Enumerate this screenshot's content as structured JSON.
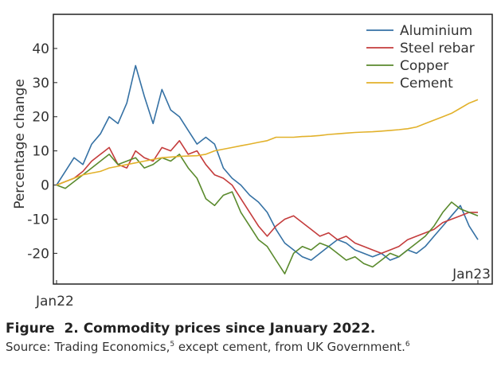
{
  "chart_data": {
    "type": "line",
    "title": "",
    "xlabel": "",
    "ylabel": "Percentage change",
    "ylim": [
      -29,
      50
    ],
    "yticks": [
      -20,
      -10,
      0,
      10,
      20,
      30,
      40
    ],
    "ytick_labels": [
      "-20",
      "-10",
      "0",
      "10",
      "20",
      "30",
      "40"
    ],
    "x_index_range": [
      0,
      48
    ],
    "x_ticks": [
      {
        "index": 0,
        "label": "Jan22"
      },
      {
        "index": 48,
        "label": "Jan23"
      }
    ],
    "legend": "top-right",
    "series": [
      {
        "name": "Aluminium",
        "color": "#3571a4",
        "values": [
          0,
          4,
          8,
          6,
          12,
          15,
          20,
          18,
          24,
          35,
          26,
          18,
          28,
          22,
          20,
          16,
          12,
          14,
          12,
          5,
          2,
          0,
          -3,
          -5,
          -8,
          -13,
          -17,
          -19,
          -21,
          -22,
          -20,
          -18,
          -16,
          -17,
          -19,
          -20,
          -21,
          -20,
          -22,
          -21,
          -19,
          -20,
          -18,
          -15,
          -12,
          -9,
          -6,
          -12,
          -16
        ]
      },
      {
        "name": "Steel rebar",
        "color": "#c43c3c",
        "values": [
          0,
          1,
          2,
          4,
          7,
          9,
          11,
          6,
          5,
          10,
          8,
          7,
          11,
          10,
          13,
          9,
          10,
          6,
          3,
          2,
          0,
          -4,
          -8,
          -12,
          -15,
          -12,
          -10,
          -9,
          -11,
          -13,
          -15,
          -14,
          -16,
          -15,
          -17,
          -18,
          -19,
          -20,
          -19,
          -18,
          -16,
          -15,
          -14,
          -13,
          -11,
          -10,
          -9,
          -8,
          -8
        ]
      },
      {
        "name": "Copper",
        "color": "#5a8a2d",
        "values": [
          0,
          -1,
          1,
          3,
          5,
          7,
          9,
          6,
          7,
          8,
          5,
          6,
          8,
          7,
          9,
          5,
          2,
          -4,
          -6,
          -3,
          -2,
          -8,
          -12,
          -16,
          -18,
          -22,
          -26,
          -20,
          -18,
          -19,
          -17,
          -18,
          -20,
          -22,
          -21,
          -23,
          -24,
          -22,
          -20,
          -21,
          -19,
          -17,
          -15,
          -12,
          -8,
          -5,
          -7,
          -8,
          -9
        ]
      },
      {
        "name": "Cement",
        "color": "#e2b12a",
        "values": [
          0,
          1,
          2,
          3,
          3.5,
          4,
          5,
          5.5,
          6,
          6.5,
          7,
          7.5,
          8,
          8.2,
          8.4,
          8.5,
          8.6,
          9,
          10,
          10.5,
          11,
          11.5,
          12,
          12.5,
          13,
          14,
          14,
          14,
          14.2,
          14.3,
          14.5,
          14.8,
          15,
          15.2,
          15.4,
          15.5,
          15.6,
          15.8,
          16,
          16.2,
          16.5,
          17,
          18,
          19,
          20,
          21,
          22.5,
          24,
          25
        ]
      }
    ]
  },
  "caption": {
    "figure_label": "Figure",
    "figure_number": "2.",
    "title": "Commodity prices since January 2022.",
    "source_prefix": "Source: Trading Economics,",
    "source_ref1": "5",
    "source_middle": " except cement, from UK Government.",
    "source_ref2": "6"
  }
}
